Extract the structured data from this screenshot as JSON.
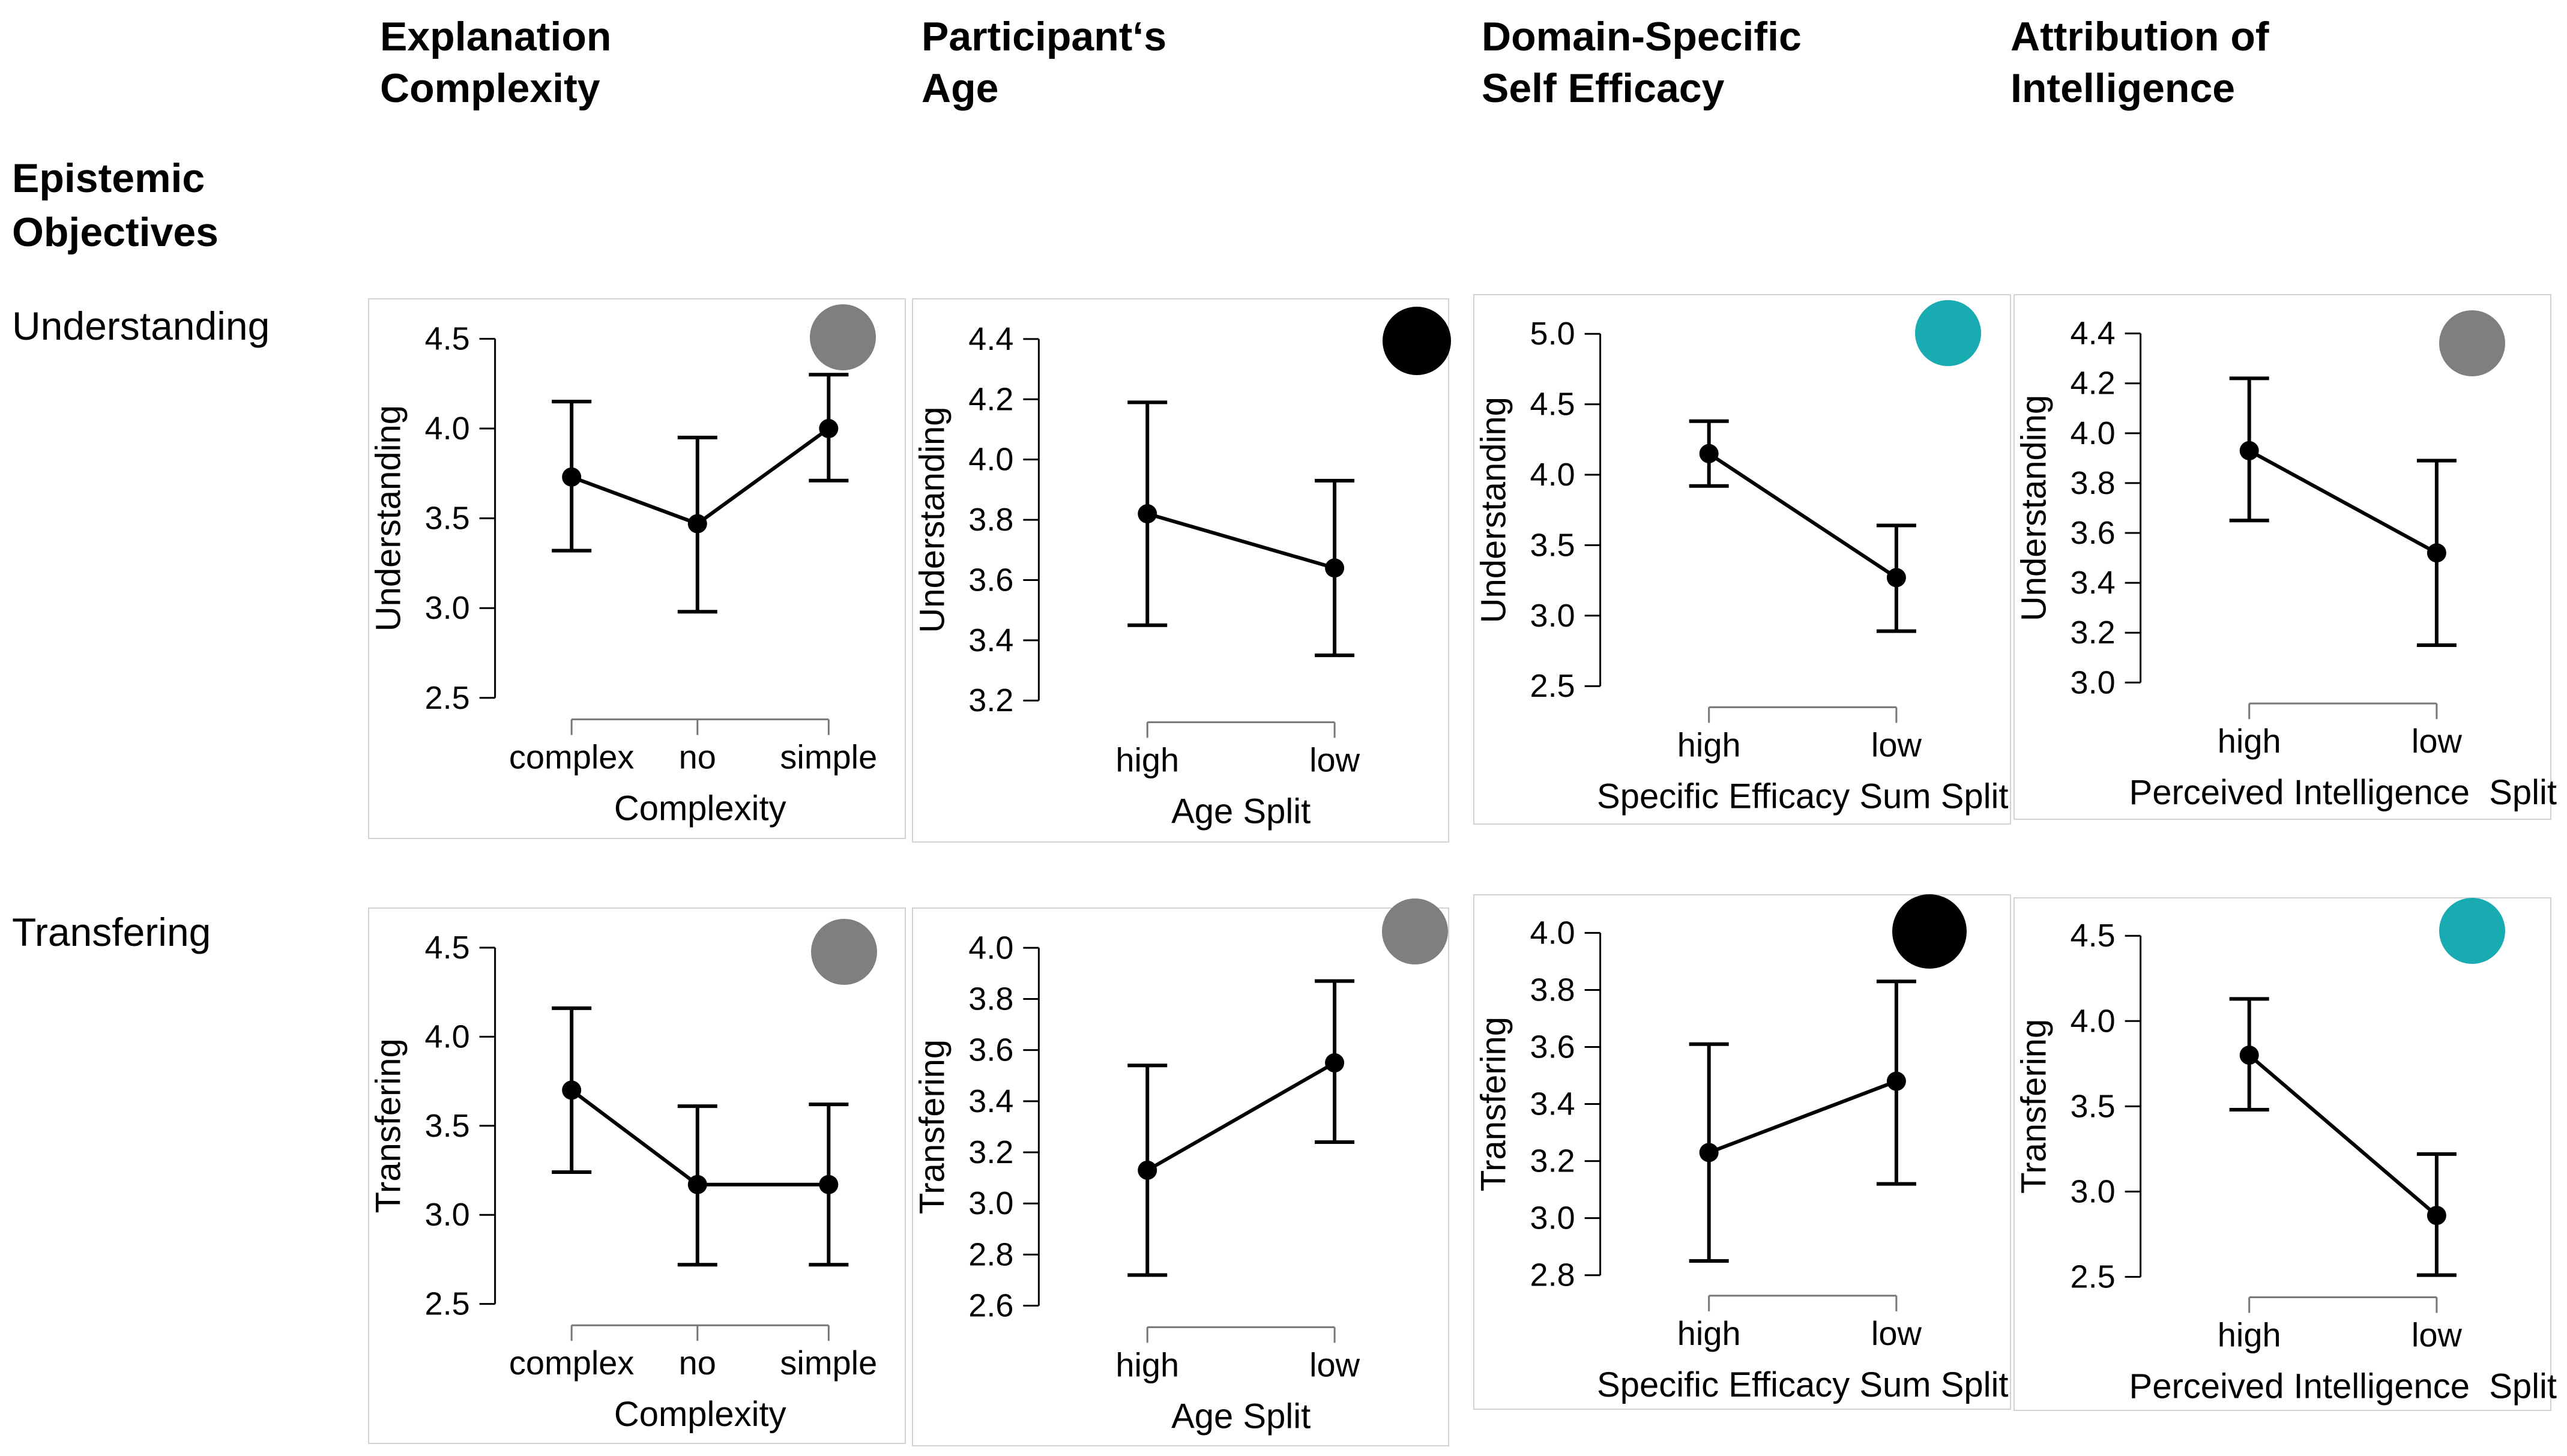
{
  "page": {
    "corner": {
      "line1": "Epistemic",
      "line2": "Objectives"
    },
    "column_headers": [
      {
        "line1": "Explanation",
        "line2": "Complexity"
      },
      {
        "line1": "Participant‘s",
        "line2": "Age"
      },
      {
        "line1": "Domain-Specific",
        "line2": "Self Efficacy"
      },
      {
        "line1": "Attribution of",
        "line2": "Intelligence"
      }
    ],
    "row_labels": [
      "Understanding",
      "Transfering"
    ]
  },
  "colors": {
    "badge_gray": "#7f7f7f",
    "badge_black": "#000000",
    "badge_teal": "#18abb2",
    "panel_border": "#d2d2d2",
    "axis_black": "#000000",
    "bracket_gray": "#777777"
  },
  "chart_data": [
    {
      "id": "understanding-complexity",
      "type": "line",
      "row": "Understanding",
      "column": "Explanation Complexity",
      "ylabel": "Understanding",
      "xlabel": "Complexity",
      "categories": [
        "complex",
        "no",
        "simple"
      ],
      "means": [
        3.73,
        3.47,
        4.0
      ],
      "ci_lower": [
        3.32,
        2.98,
        3.71
      ],
      "ci_upper": [
        4.15,
        3.95,
        4.3
      ],
      "yticks": [
        2.5,
        3.0,
        3.5,
        4.0,
        4.5
      ],
      "ylim": [
        2.5,
        4.5
      ],
      "grid": false,
      "badge": "gray",
      "badge_color": "#7f7f7f"
    },
    {
      "id": "understanding-age",
      "type": "line",
      "row": "Understanding",
      "column": "Participant‘s Age",
      "ylabel": "Understanding",
      "xlabel": "Age Split",
      "categories": [
        "high",
        "low"
      ],
      "means": [
        3.82,
        3.64
      ],
      "ci_lower": [
        3.45,
        3.35
      ],
      "ci_upper": [
        4.19,
        3.93
      ],
      "yticks": [
        3.2,
        3.4,
        3.6,
        3.8,
        4.0,
        4.2,
        4.4
      ],
      "ylim": [
        3.2,
        4.4
      ],
      "grid": false,
      "badge": "black",
      "badge_color": "#000000"
    },
    {
      "id": "understanding-self-efficacy",
      "type": "line",
      "row": "Understanding",
      "column": "Domain-Specific Self Efficacy",
      "ylabel": "Understanding",
      "xlabel": "Specific Efficacy Sum Split",
      "categories": [
        "high",
        "low"
      ],
      "means": [
        4.15,
        3.27
      ],
      "ci_lower": [
        3.92,
        2.89
      ],
      "ci_upper": [
        4.38,
        3.64
      ],
      "yticks": [
        2.5,
        3.0,
        3.5,
        4.0,
        4.5,
        5.0
      ],
      "ylim": [
        2.5,
        5.0
      ],
      "grid": false,
      "badge": "teal",
      "badge_color": "#18abb2"
    },
    {
      "id": "understanding-perceived-intelligence",
      "type": "line",
      "row": "Understanding",
      "column": "Attribution of Intelligence",
      "ylabel": "Understanding",
      "xlabel": "Perceived Intelligence  Split",
      "categories": [
        "high",
        "low"
      ],
      "means": [
        3.93,
        3.52
      ],
      "ci_lower": [
        3.65,
        3.15
      ],
      "ci_upper": [
        4.22,
        3.89
      ],
      "yticks": [
        3.0,
        3.2,
        3.4,
        3.6,
        3.8,
        4.0,
        4.2,
        4.4
      ],
      "ylim": [
        3.0,
        4.4
      ],
      "grid": false,
      "badge": "gray",
      "badge_color": "#7f7f7f"
    },
    {
      "id": "transfering-complexity",
      "type": "line",
      "row": "Transfering",
      "column": "Explanation Complexity",
      "ylabel": "Transfering",
      "xlabel": "Complexity",
      "categories": [
        "complex",
        "no",
        "simple"
      ],
      "means": [
        3.7,
        3.17,
        3.17
      ],
      "ci_lower": [
        3.24,
        2.72,
        2.72
      ],
      "ci_upper": [
        4.16,
        3.61,
        3.62
      ],
      "yticks": [
        2.5,
        3.0,
        3.5,
        4.0,
        4.5
      ],
      "ylim": [
        2.5,
        4.5
      ],
      "grid": false,
      "badge": "gray",
      "badge_color": "#7f7f7f"
    },
    {
      "id": "transfering-age",
      "type": "line",
      "row": "Transfering",
      "column": "Participant‘s Age",
      "ylabel": "Transfering",
      "xlabel": "Age Split",
      "categories": [
        "high",
        "low"
      ],
      "means": [
        3.13,
        3.55
      ],
      "ci_lower": [
        2.72,
        3.24
      ],
      "ci_upper": [
        3.54,
        3.87
      ],
      "yticks": [
        2.6,
        2.8,
        3.0,
        3.2,
        3.4,
        3.6,
        3.8,
        4.0
      ],
      "ylim": [
        2.6,
        4.0
      ],
      "grid": false,
      "badge": "gray",
      "badge_color": "#7f7f7f"
    },
    {
      "id": "transfering-self-efficacy",
      "type": "line",
      "row": "Transfering",
      "column": "Domain-Specific Self Efficacy",
      "ylabel": "Transfering",
      "xlabel": "Specific Efficacy Sum Split",
      "categories": [
        "high",
        "low"
      ],
      "means": [
        3.23,
        3.48
      ],
      "ci_lower": [
        2.85,
        3.12
      ],
      "ci_upper": [
        3.61,
        3.83
      ],
      "yticks": [
        2.8,
        3.0,
        3.2,
        3.4,
        3.6,
        3.8,
        4.0
      ],
      "ylim": [
        2.8,
        4.0
      ],
      "grid": false,
      "badge": "black",
      "badge_color": "#000000"
    },
    {
      "id": "transfering-perceived-intelligence",
      "type": "line",
      "row": "Transfering",
      "column": "Attribution of Intelligence",
      "ylabel": "Transfering",
      "xlabel": "Perceived Intelligence  Split",
      "categories": [
        "high",
        "low"
      ],
      "means": [
        3.8,
        2.86
      ],
      "ci_lower": [
        3.48,
        2.51
      ],
      "ci_upper": [
        4.13,
        3.22
      ],
      "yticks": [
        2.5,
        3.0,
        3.5,
        4.0,
        4.5
      ],
      "ylim": [
        2.5,
        4.5
      ],
      "grid": false,
      "badge": "teal",
      "badge_color": "#18abb2"
    }
  ]
}
